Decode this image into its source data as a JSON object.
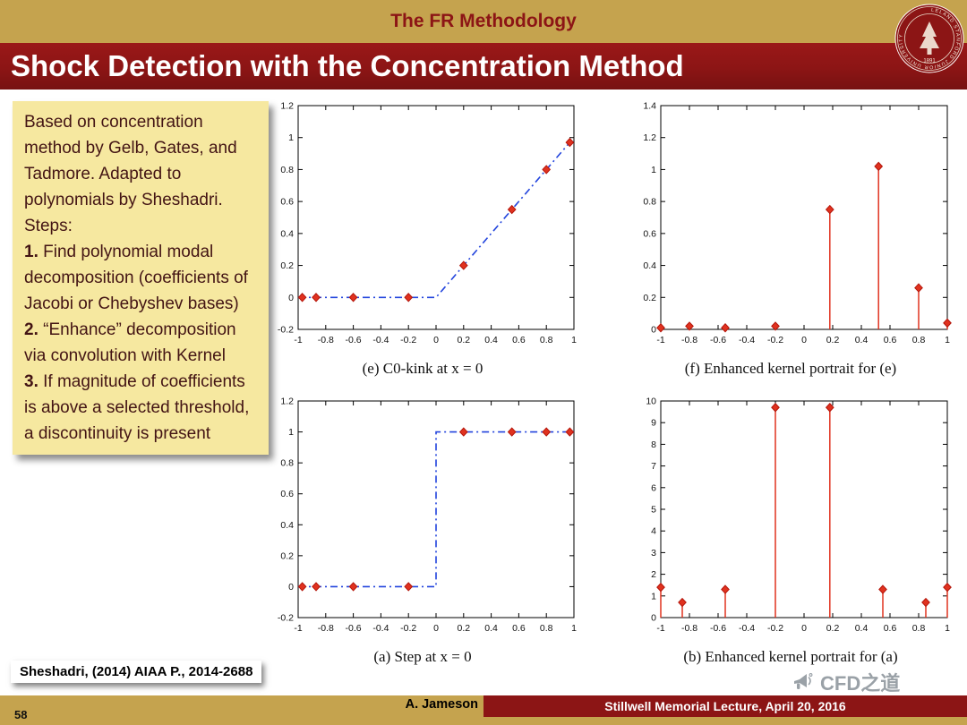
{
  "colors": {
    "gold": "#C5A34E",
    "cardinal": "#8C1515",
    "note_bg": "#F6E8A0",
    "line_blue": "#2244DD",
    "stem_red": "#E0321F",
    "watermark_gray": "#9aa1a7"
  },
  "header": {
    "section": "The FR Methodology",
    "title": "Shock Detection with the Concentration Method"
  },
  "seal": {
    "ring_text": "LELAND STANFORD JUNIOR UNIVERSITY",
    "year": "1891"
  },
  "note": {
    "intro": "Based on concentration method by Gelb, Gates, and Tadmore. Adapted to polynomials by Sheshadri.",
    "steps_label": "Steps:",
    "steps": [
      {
        "num": "1.",
        "text": "Find polynomial modal decomposition (coefficients of Jacobi or Chebyshev bases)"
      },
      {
        "num": "2.",
        "text": "“Enhance” decomposition via convolution with Kernel"
      },
      {
        "num": "3.",
        "text": "If magnitude of coefficients is above a selected threshold, a discontinuity is present"
      }
    ]
  },
  "chart_data": [
    {
      "type": "line",
      "caption": "(e) C0-kink at x = 0",
      "xlim": [
        -1,
        1
      ],
      "ylim": [
        -0.2,
        1.2
      ],
      "xticks": [
        -1,
        -0.8,
        -0.6,
        -0.4,
        -0.2,
        0,
        0.2,
        0.4,
        0.6,
        0.8,
        1
      ],
      "yticks": [
        -0.2,
        0,
        0.2,
        0.4,
        0.6,
        0.8,
        1,
        1.2
      ],
      "line": {
        "x": [
          -1,
          0,
          1
        ],
        "y": [
          0,
          0,
          1
        ],
        "style": "dash-dot",
        "color": "#2244DD"
      },
      "markers": {
        "shape": "diamond",
        "color": "#E0321F",
        "x": [
          -0.97,
          -0.87,
          -0.6,
          -0.2,
          0.2,
          0.55,
          0.8,
          0.97
        ],
        "y": [
          0,
          0,
          0,
          0,
          0.2,
          0.55,
          0.8,
          0.97
        ]
      }
    },
    {
      "type": "stem",
      "caption": "(f) Enhanced kernel portrait for (e)",
      "xlim": [
        -1,
        1
      ],
      "ylim": [
        0,
        1.4
      ],
      "xticks": [
        -1,
        -0.8,
        -0.6,
        -0.4,
        -0.2,
        0,
        0.2,
        0.4,
        0.6,
        0.8,
        1
      ],
      "yticks": [
        0,
        0.2,
        0.4,
        0.6,
        0.8,
        1,
        1.2,
        1.4
      ],
      "stems": {
        "color": "#E0321F",
        "x": [
          -1,
          -0.8,
          -0.55,
          -0.2,
          0.18,
          0.52,
          0.8,
          1
        ],
        "y": [
          0.01,
          0.02,
          0.01,
          0.02,
          0.75,
          1.02,
          0.26,
          0.04
        ]
      }
    },
    {
      "type": "line",
      "caption": "(a) Step at x = 0",
      "xlim": [
        -1,
        1
      ],
      "ylim": [
        -0.2,
        1.2
      ],
      "xticks": [
        -1,
        -0.8,
        -0.6,
        -0.4,
        -0.2,
        0,
        0.2,
        0.4,
        0.6,
        0.8,
        1
      ],
      "yticks": [
        -0.2,
        0,
        0.2,
        0.4,
        0.6,
        0.8,
        1,
        1.2
      ],
      "line": {
        "x": [
          -1,
          0,
          0,
          1
        ],
        "y": [
          0,
          0,
          1,
          1
        ],
        "style": "dash-dot",
        "color": "#2244DD"
      },
      "markers": {
        "shape": "diamond",
        "color": "#E0321F",
        "x": [
          -0.97,
          -0.87,
          -0.6,
          -0.2,
          0.2,
          0.55,
          0.8,
          0.97
        ],
        "y": [
          0,
          0,
          0,
          0,
          1,
          1,
          1,
          1
        ]
      }
    },
    {
      "type": "stem",
      "caption": "(b) Enhanced kernel portrait for (a)",
      "xlim": [
        -1,
        1
      ],
      "ylim": [
        0,
        10
      ],
      "xticks": [
        -1,
        -0.8,
        -0.6,
        -0.4,
        -0.2,
        0,
        0.2,
        0.4,
        0.6,
        0.8,
        1
      ],
      "yticks": [
        0,
        1,
        2,
        3,
        4,
        5,
        6,
        7,
        8,
        9,
        10
      ],
      "stems": {
        "color": "#E0321F",
        "x": [
          -1,
          -0.85,
          -0.55,
          -0.2,
          0.18,
          0.55,
          0.85,
          1
        ],
        "y": [
          1.4,
          0.7,
          1.3,
          9.7,
          9.7,
          1.3,
          0.7,
          1.4
        ]
      }
    }
  ],
  "citation": {
    "text": "Sheshadri, (2014) AIAA P., 2014-2688"
  },
  "watermark": {
    "label": "CFD之道"
  },
  "footer": {
    "author": "A. Jameson",
    "venue": "Stillwell Memorial Lecture, April 20, 2016",
    "page": "58"
  }
}
